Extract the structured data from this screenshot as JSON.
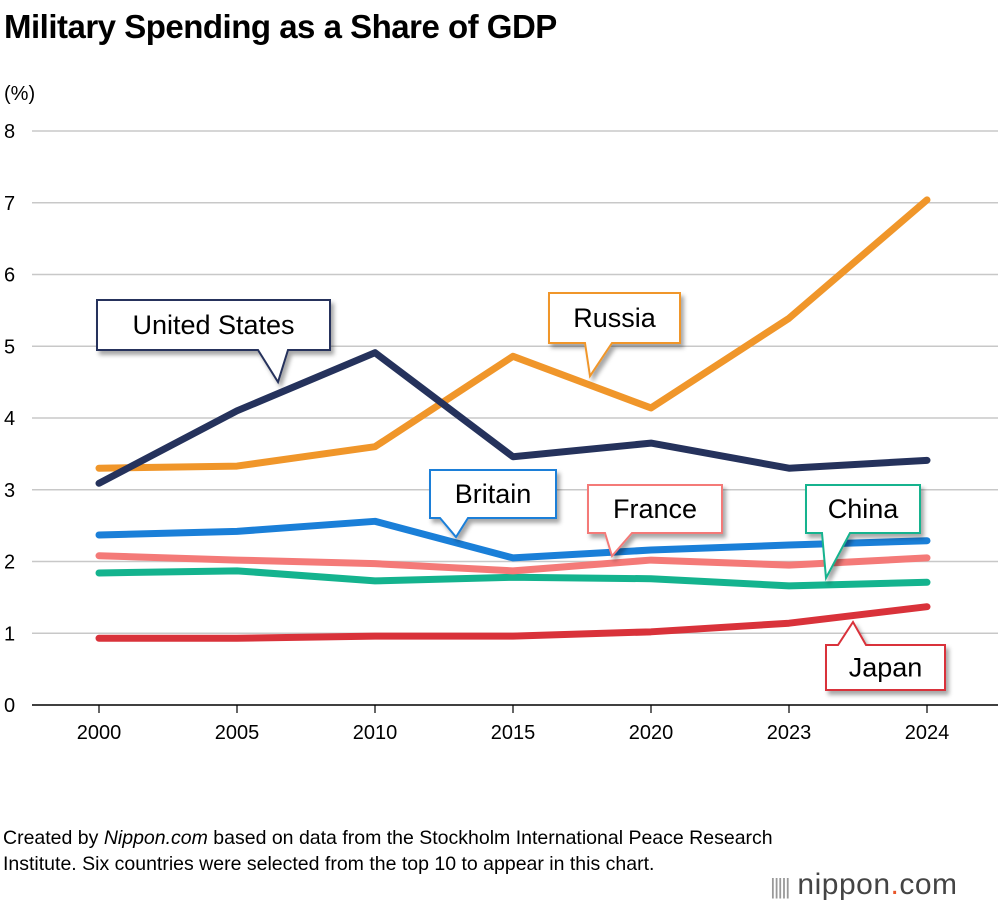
{
  "title": "Military Spending as a Share of GDP",
  "footnote": {
    "prefix": "Created by ",
    "source_name": "Nippon.com",
    "suffix": " based on data from the Stockholm International Peace Research Institute. Six countries were selected from the top 10 to appear in this chart."
  },
  "logo": {
    "name": "nippon",
    "dot": ".",
    "tld": "com"
  },
  "chart_data": {
    "type": "line",
    "title": "Military Spending as a Share of GDP",
    "ylabel": "(%)",
    "xlabel": "",
    "ylim": [
      0,
      8
    ],
    "yticks": [
      "0",
      "1",
      "2",
      "3",
      "4",
      "5",
      "6",
      "7",
      "8"
    ],
    "categories": [
      "2000",
      "2005",
      "2010",
      "2015",
      "2020",
      "2023",
      "2024"
    ],
    "grid": "horizontal",
    "legend": "callout labels",
    "series": [
      {
        "name": "United States",
        "color": "#25325c",
        "values": [
          3.09,
          4.1,
          4.91,
          3.46,
          3.65,
          3.3,
          3.41
        ]
      },
      {
        "name": "Russia",
        "color": "#f0962a",
        "values": [
          3.3,
          3.33,
          3.6,
          4.86,
          4.14,
          5.39,
          7.04
        ]
      },
      {
        "name": "Britain",
        "color": "#1a7fd8",
        "values": [
          2.37,
          2.42,
          2.56,
          2.05,
          2.16,
          2.23,
          2.29
        ]
      },
      {
        "name": "France",
        "color": "#f47a78",
        "values": [
          2.08,
          2.02,
          1.97,
          1.87,
          2.02,
          1.95,
          2.05
        ]
      },
      {
        "name": "China",
        "color": "#14b38e",
        "values": [
          1.84,
          1.87,
          1.73,
          1.78,
          1.76,
          1.66,
          1.71
        ]
      },
      {
        "name": "Japan",
        "color": "#d9323a",
        "values": [
          0.93,
          0.93,
          0.96,
          0.96,
          1.02,
          1.14,
          1.37
        ]
      }
    ]
  }
}
